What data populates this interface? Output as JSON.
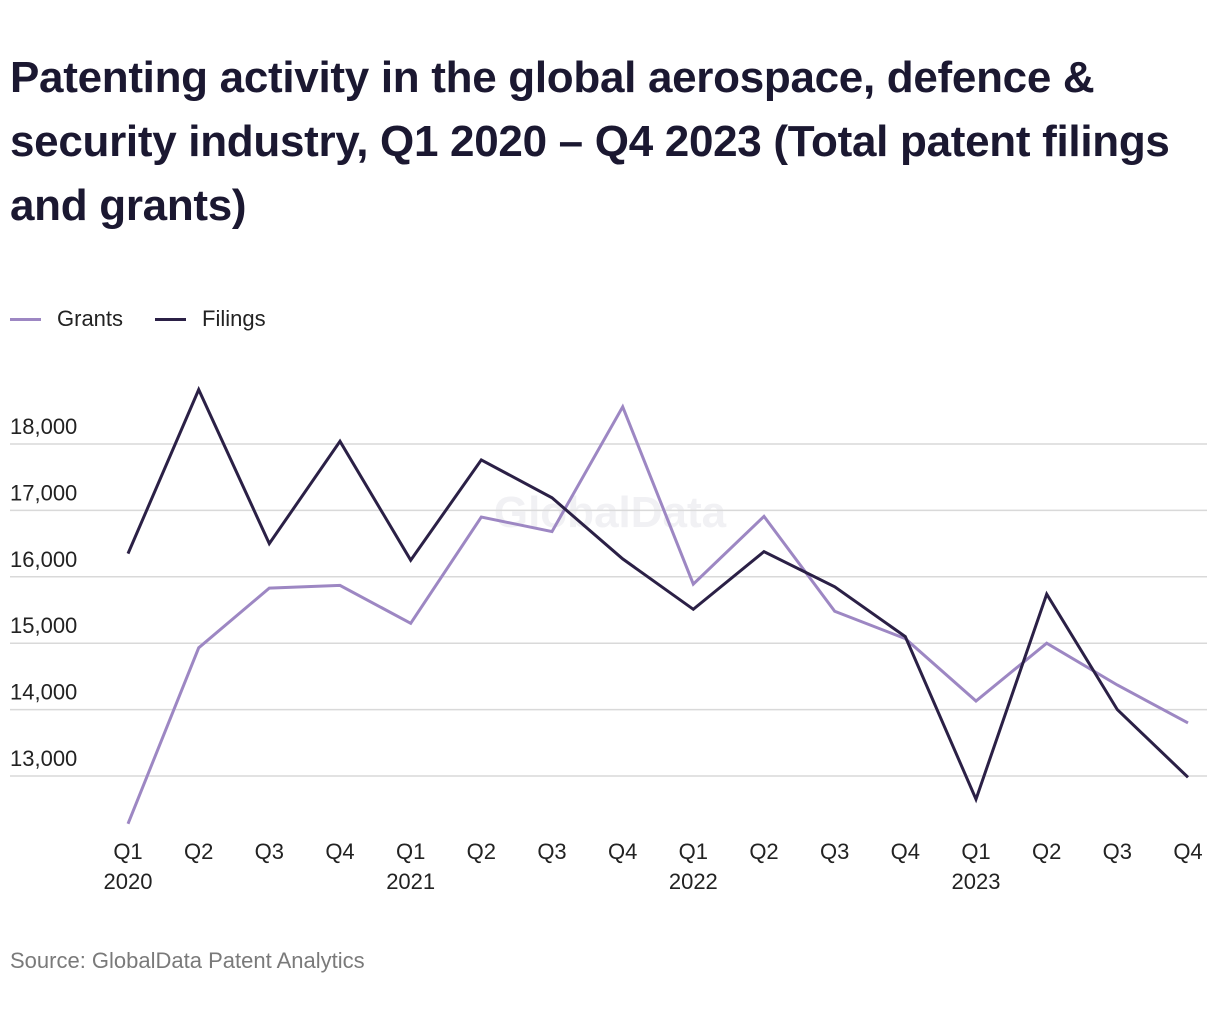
{
  "chart_data": {
    "type": "line",
    "title": "Patenting activity in the global aerospace, defence & security industry, Q1 2020 – Q4 2023 (Total patent filings and grants)",
    "categories": [
      "Q1 2020",
      "Q2 2020",
      "Q3 2020",
      "Q4 2020",
      "Q1 2021",
      "Q2 2021",
      "Q3 2021",
      "Q4 2021",
      "Q1 2022",
      "Q2 2022",
      "Q3 2022",
      "Q4 2022",
      "Q1 2023",
      "Q2 2023",
      "Q3 2023",
      "Q4 2023"
    ],
    "tick_labels": [
      {
        "quarter": "Q1",
        "year": "2020"
      },
      {
        "quarter": "Q2",
        "year": ""
      },
      {
        "quarter": "Q3",
        "year": ""
      },
      {
        "quarter": "Q4",
        "year": ""
      },
      {
        "quarter": "Q1",
        "year": "2021"
      },
      {
        "quarter": "Q2",
        "year": ""
      },
      {
        "quarter": "Q3",
        "year": ""
      },
      {
        "quarter": "Q4",
        "year": ""
      },
      {
        "quarter": "Q1",
        "year": "2022"
      },
      {
        "quarter": "Q2",
        "year": ""
      },
      {
        "quarter": "Q3",
        "year": ""
      },
      {
        "quarter": "Q4",
        "year": ""
      },
      {
        "quarter": "Q1",
        "year": "2023"
      },
      {
        "quarter": "Q2",
        "year": ""
      },
      {
        "quarter": "Q3",
        "year": ""
      },
      {
        "quarter": "Q4",
        "year": ""
      }
    ],
    "series": [
      {
        "name": "Grants",
        "color": "#9d87c3",
        "values": [
          12280,
          14930,
          15830,
          15870,
          15300,
          16900,
          16680,
          18560,
          15890,
          16910,
          15480,
          15070,
          14130,
          15000,
          14370,
          13800
        ]
      },
      {
        "name": "Filings",
        "color": "#2b2046",
        "values": [
          16350,
          18820,
          16500,
          18040,
          16250,
          17760,
          17190,
          16270,
          15510,
          16380,
          15850,
          15100,
          12650,
          15740,
          14000,
          12980
        ]
      }
    ],
    "yticks": [
      13000,
      14000,
      15000,
      16000,
      17000,
      18000
    ],
    "ytick_labels": [
      "13,000",
      "14,000",
      "15,000",
      "16,000",
      "17,000",
      "18,000"
    ],
    "ylim": [
      12000,
      19000
    ],
    "grid": true,
    "legend_placement": "top-left",
    "watermark": "GlobalData",
    "source": "Source: GlobalData Patent Analytics"
  }
}
